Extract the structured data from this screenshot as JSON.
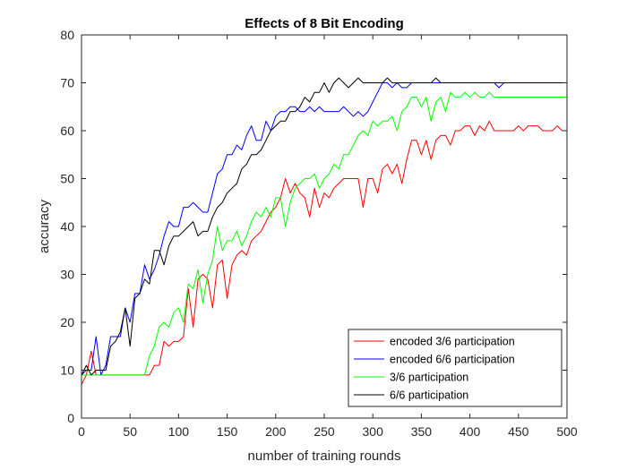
{
  "chart_data": {
    "type": "line",
    "title": "Effects of 8 Bit Encoding",
    "xlabel": "number of training rounds",
    "ylabel": "accuracy",
    "xlim": [
      0,
      500
    ],
    "ylim": [
      0,
      80
    ],
    "xticks": [
      0,
      50,
      100,
      150,
      200,
      250,
      300,
      350,
      400,
      450,
      500
    ],
    "yticks": [
      0,
      10,
      20,
      30,
      40,
      50,
      60,
      70,
      80
    ],
    "grid": false,
    "legend_position": "bottom-right",
    "x": [
      0,
      5,
      10,
      15,
      20,
      25,
      30,
      35,
      40,
      45,
      50,
      55,
      60,
      65,
      70,
      75,
      80,
      85,
      90,
      95,
      100,
      105,
      110,
      115,
      120,
      125,
      130,
      135,
      140,
      145,
      150,
      155,
      160,
      165,
      170,
      175,
      180,
      185,
      190,
      195,
      200,
      205,
      210,
      215,
      220,
      225,
      230,
      235,
      240,
      245,
      250,
      255,
      260,
      265,
      270,
      275,
      280,
      285,
      290,
      295,
      300,
      305,
      310,
      315,
      320,
      325,
      330,
      335,
      340,
      345,
      350,
      355,
      360,
      365,
      370,
      375,
      380,
      385,
      390,
      395,
      400,
      405,
      410,
      415,
      420,
      425,
      430,
      435,
      440,
      445,
      450,
      455,
      460,
      465,
      470,
      475,
      480,
      485,
      490,
      495,
      500
    ],
    "series": [
      {
        "name": "encoded 3/6 participation",
        "color": "#ff0000",
        "values": [
          7,
          9,
          14,
          9,
          9,
          9,
          9,
          9,
          9,
          9,
          9,
          9,
          9,
          9,
          9,
          11,
          11,
          16,
          15,
          16,
          16,
          17,
          27,
          19,
          29,
          30,
          29,
          23,
          32,
          33,
          25,
          32,
          34,
          35,
          34,
          37,
          38,
          39,
          41,
          43,
          44,
          46,
          50,
          47,
          49,
          47,
          46,
          42,
          48,
          44,
          47,
          46,
          48,
          49,
          50,
          50,
          50,
          50,
          44,
          50,
          50,
          47,
          52,
          53,
          51,
          53,
          49,
          54,
          58,
          58,
          55,
          58,
          54,
          58,
          59,
          59,
          57,
          60,
          60,
          61,
          61,
          59,
          61,
          60,
          62,
          60,
          60,
          60,
          60,
          60,
          61,
          60,
          61,
          61,
          61,
          60,
          60,
          60,
          61,
          60,
          60
        ]
      },
      {
        "name": "encoded 6/6 participation",
        "color": "#0000ff",
        "values": [
          9,
          10,
          10,
          17,
          9,
          11,
          17,
          17,
          17,
          23,
          20,
          26,
          26,
          32,
          29,
          31,
          34,
          38,
          41,
          40,
          40,
          44,
          44,
          45,
          44,
          43,
          43,
          47,
          51,
          52,
          55,
          55,
          57,
          56,
          59,
          61,
          58,
          58,
          62,
          60,
          63,
          64,
          64,
          65,
          65,
          64,
          64,
          65,
          64,
          65,
          64,
          64,
          64,
          64,
          65,
          64,
          63,
          64,
          63,
          64,
          66,
          68,
          70,
          70,
          69,
          70,
          69,
          69,
          70,
          70,
          70,
          70,
          70,
          70,
          70,
          70,
          70,
          70,
          70,
          70,
          70,
          70,
          70,
          70,
          70,
          70,
          69,
          70,
          70,
          70,
          70,
          70,
          70,
          70,
          70,
          70,
          70,
          70,
          70,
          70,
          70
        ]
      },
      {
        "name": "3/6 participation",
        "color": "#00ff00",
        "values": [
          9,
          9,
          9,
          9,
          9,
          9,
          9,
          9,
          9,
          9,
          9,
          9,
          9,
          9,
          13,
          15,
          19,
          20,
          19,
          22,
          23,
          20,
          28,
          27,
          31,
          24,
          30,
          33,
          40,
          35,
          37,
          37,
          39,
          36,
          38,
          41,
          43,
          42,
          44,
          42,
          46,
          46,
          40,
          45,
          48,
          49,
          50,
          50,
          51,
          48,
          50,
          51,
          53,
          52,
          55,
          55,
          57,
          59,
          60,
          59,
          62,
          61,
          62,
          62,
          63,
          60,
          64,
          65,
          67,
          67,
          65,
          67,
          62,
          66,
          67,
          64,
          68,
          67,
          67,
          68,
          67,
          68,
          67,
          67,
          68,
          67,
          67,
          67,
          67,
          67,
          67,
          67,
          67,
          67,
          67,
          67,
          67,
          67,
          67,
          67,
          67
        ]
      },
      {
        "name": "6/6 participation",
        "color": "#000000",
        "values": [
          9,
          11,
          9,
          10,
          10,
          10,
          15,
          16,
          18,
          23,
          15,
          25,
          26,
          29,
          28,
          35,
          35,
          32,
          36,
          38,
          38,
          39,
          40,
          41,
          38,
          39,
          39,
          42,
          44,
          45,
          47,
          48,
          49,
          52,
          53,
          55,
          55,
          56,
          58,
          60,
          61,
          62,
          62,
          64,
          64,
          65,
          67,
          66,
          68,
          68,
          70,
          68,
          70,
          71,
          70,
          69,
          70,
          71,
          70,
          70,
          70,
          70,
          70,
          71,
          70,
          70,
          70,
          70,
          70,
          70,
          70,
          70,
          70,
          71,
          70,
          70,
          70,
          70,
          70,
          70,
          70,
          70,
          70,
          70,
          70,
          70,
          70,
          70,
          70,
          70,
          70,
          70,
          70,
          70,
          70,
          70,
          70,
          70,
          70,
          70,
          70
        ]
      }
    ]
  }
}
